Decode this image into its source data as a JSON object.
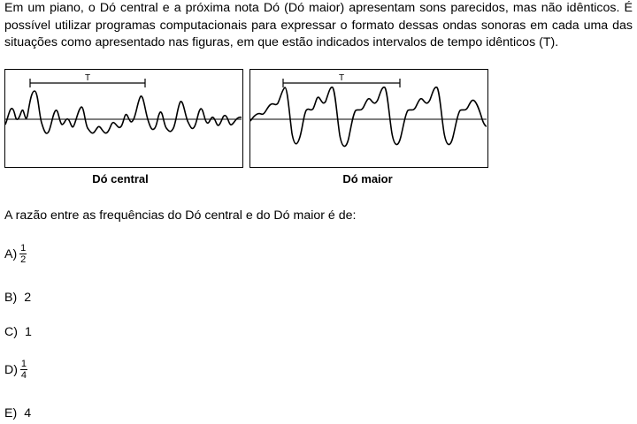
{
  "intro_text": "Em um piano, o Dó central e a próxima nota Dó (Dó maior) apresentam sons parecidos, mas não idênticos. É possível utilizar programas computacionais para expressar o formato dessas ondas sonoras em cada uma das situações como apresentado nas figuras, em que estão indicados intervalos de tempo idênticos (T).",
  "figures": [
    {
      "caption": "Dó central",
      "period_label": "T"
    },
    {
      "caption": "Dó maior",
      "period_label": "T"
    }
  ],
  "question": "A razão entre as frequências do Dó central e do Dó maior é de:",
  "options": [
    {
      "letter": "A)",
      "numerator": "1",
      "denominator": "2"
    },
    {
      "letter": "B)",
      "value": "2"
    },
    {
      "letter": "C)",
      "value": "1"
    },
    {
      "letter": "D)",
      "numerator": "1",
      "denominator": "4"
    },
    {
      "letter": "E)",
      "value": "4"
    }
  ]
}
